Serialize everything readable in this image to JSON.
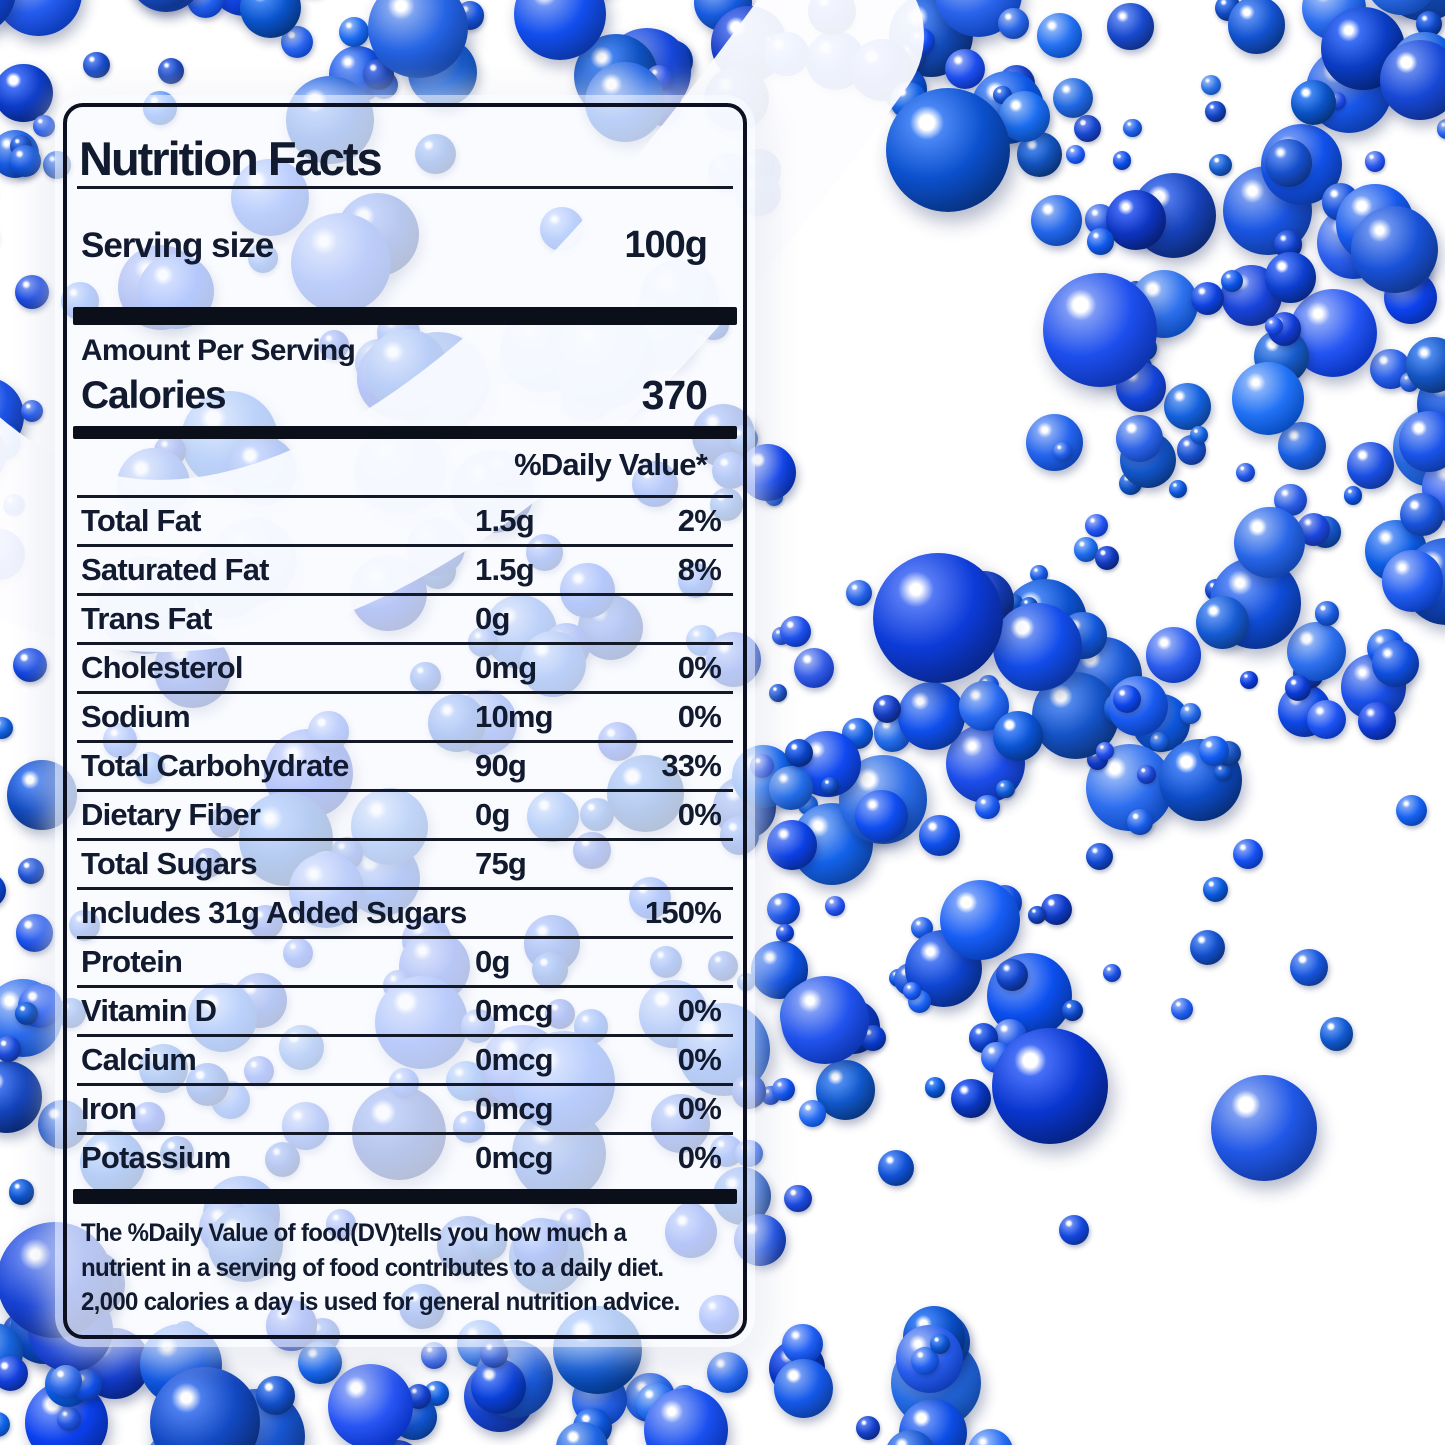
{
  "label": {
    "title": "Nutrition Facts",
    "serving_size_label": "Serving size",
    "serving_size_value": "100g",
    "amount_per_serving": "Amount Per Serving",
    "calories_label": "Calories",
    "calories_value": "370",
    "daily_value_header": "%Daily Value*",
    "rows": [
      {
        "name": "Total Fat",
        "amount": "1.5g",
        "dv": "2%"
      },
      {
        "name": "Saturated Fat",
        "amount": "1.5g",
        "dv": "8%"
      },
      {
        "name": "Trans Fat",
        "amount": "0g",
        "dv": ""
      },
      {
        "name": "Cholesterol",
        "amount": "0mg",
        "dv": "0%"
      },
      {
        "name": "Sodium",
        "amount": "10mg",
        "dv": "0%"
      },
      {
        "name": "Total Carbohydrate",
        "amount": "90g",
        "dv": "33%"
      },
      {
        "name": "Dietary Fiber",
        "amount": "0g",
        "dv": "0%"
      },
      {
        "name": "Total Sugars",
        "amount": "75g",
        "dv": ""
      },
      {
        "name": "Includes 31g Added Sugars",
        "amount": "",
        "dv": "150%"
      },
      {
        "name": "Protein",
        "amount": "0g",
        "dv": ""
      },
      {
        "name": "Vitamin D",
        "amount": "0mcg",
        "dv": "0%"
      },
      {
        "name": "Calcium",
        "amount": "0mcg",
        "dv": "0%"
      },
      {
        "name": "Iron",
        "amount": "0mcg",
        "dv": "0%"
      },
      {
        "name": "Potassium",
        "amount": "0mcg",
        "dv": "0%"
      }
    ],
    "footnote_lines": [
      "The %Daily Value of food(DV)tells you how much a",
      "nutrient in a serving of food contributes to a daily diet.",
      "2,000 calories a day is used for general nutrition advice."
    ]
  },
  "label_style": {
    "text_color": "#111a2e",
    "bar_color": "#0b0f1a",
    "divider_color": "#141927",
    "border_color": "#0c1020",
    "background": "rgba(246,249,255,0.72)"
  },
  "background": {
    "description": "glossy royal blue candy pearls of mixed sizes scattered on a white surface with a white plate swoosh",
    "pearl_hue": 222,
    "pearl_base": "#1d4fd6",
    "pearl_dark": "#0c2da0",
    "pearl_light": "#4076ee",
    "pearl_highlight": "#ffffff",
    "plate_color": "#fdfdff",
    "surface_color": "#ffffff"
  }
}
